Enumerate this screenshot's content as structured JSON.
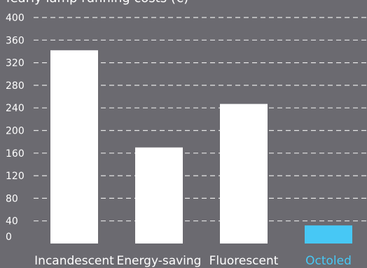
{
  "chart_data": {
    "type": "bar",
    "title": "Yearly lamp running costs (€)",
    "categories": [
      "Incandescent",
      "Energy-saving",
      "Fluorescent",
      "Octoled"
    ],
    "values": [
      342,
      170,
      247,
      32
    ],
    "ylim": [
      0,
      400
    ],
    "yticks": [
      0,
      40,
      80,
      120,
      160,
      200,
      240,
      280,
      320,
      360,
      400
    ],
    "grid": true,
    "highlight_category": "Octoled",
    "colors": {
      "background": "#6b6a70",
      "bar": "#ffffff",
      "highlight": "#47c8f5",
      "grid": "#e6e6e6",
      "text": "#ffffff"
    }
  }
}
